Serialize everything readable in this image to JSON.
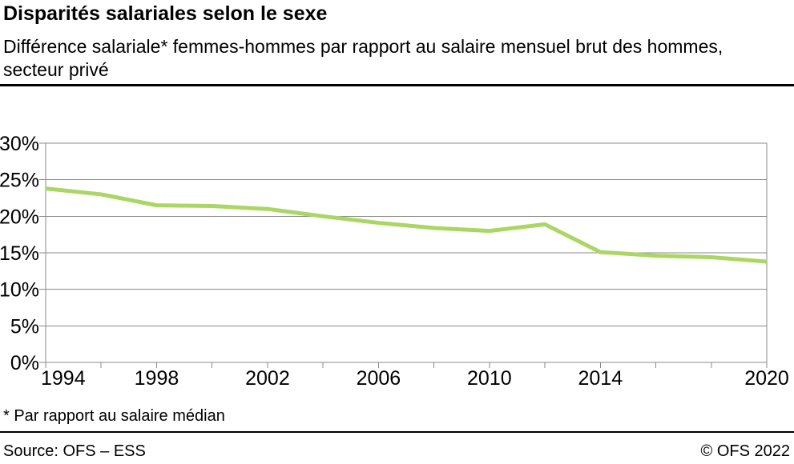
{
  "header": {
    "title": "Disparités salariales selon le sexe",
    "subtitle_lines": [
      "Différence salariale* femmes-hommes par rapport au salaire mensuel brut des hommes,",
      "secteur privé"
    ]
  },
  "chart_data": {
    "type": "line",
    "x": [
      1994,
      1996,
      1998,
      2000,
      2002,
      2004,
      2006,
      2008,
      2010,
      2012,
      2014,
      2016,
      2018,
      2020
    ],
    "series": [
      {
        "values": [
          23.8,
          23.0,
          21.5,
          21.4,
          21.0,
          20.0,
          19.1,
          18.4,
          18.0,
          18.9,
          15.1,
          14.6,
          14.4,
          13.8
        ],
        "color": "#abd664"
      }
    ],
    "xlim": [
      1994,
      2020
    ],
    "ylim": [
      0,
      30
    ],
    "y_ticks": [
      0,
      5,
      10,
      15,
      20,
      25,
      30
    ],
    "y_tick_suffix": "%",
    "x_tick_step": 2,
    "x_tick_labels": [
      "1994",
      "1998",
      "2002",
      "2006",
      "2010",
      "2014",
      "2020"
    ],
    "grid": true,
    "legend": "none"
  },
  "footnote": "* Par rapport au salaire médian",
  "footer": {
    "source": "Source: OFS – ESS",
    "copyright": "© OFS 2022"
  },
  "colors": {
    "line": "#abd664",
    "grid": "#8a8a8a",
    "rule": "#000000"
  }
}
